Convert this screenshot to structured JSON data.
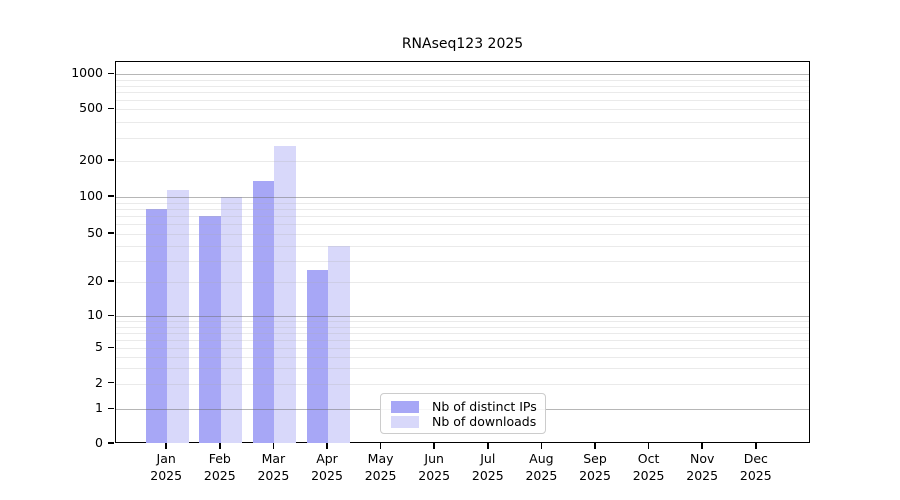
{
  "chart_data": {
    "type": "bar",
    "title": "RNAseq123 2025",
    "categories": [
      "Jan",
      "Feb",
      "Mar",
      "Apr",
      "May",
      "Jun",
      "Jul",
      "Aug",
      "Sep",
      "Oct",
      "Nov",
      "Dec"
    ],
    "category_year_label": "2025",
    "series": [
      {
        "name": "Nb of distinct IPs",
        "color": "#a7a7f6",
        "values": [
          80,
          70,
          135,
          25,
          0,
          0,
          0,
          0,
          0,
          0,
          0,
          0
        ]
      },
      {
        "name": "Nb of downloads",
        "color": "#d8d8fa",
        "values": [
          115,
          100,
          260,
          40,
          0,
          0,
          0,
          0,
          0,
          0,
          0,
          0
        ]
      }
    ],
    "y_ticks": [
      0,
      1,
      2,
      5,
      10,
      20,
      50,
      100,
      200,
      500,
      1000
    ],
    "y_scale": "log-like with 0 baseline",
    "ylim": [
      0,
      1300
    ],
    "grid": {
      "enabled": true,
      "major_values": [
        1,
        10,
        100,
        1000
      ],
      "major_color": "#6e6e6e80",
      "minor_color": "#aaaaaa40"
    },
    "legend_position": "lower center inside plot",
    "axis_color": "#000000"
  }
}
